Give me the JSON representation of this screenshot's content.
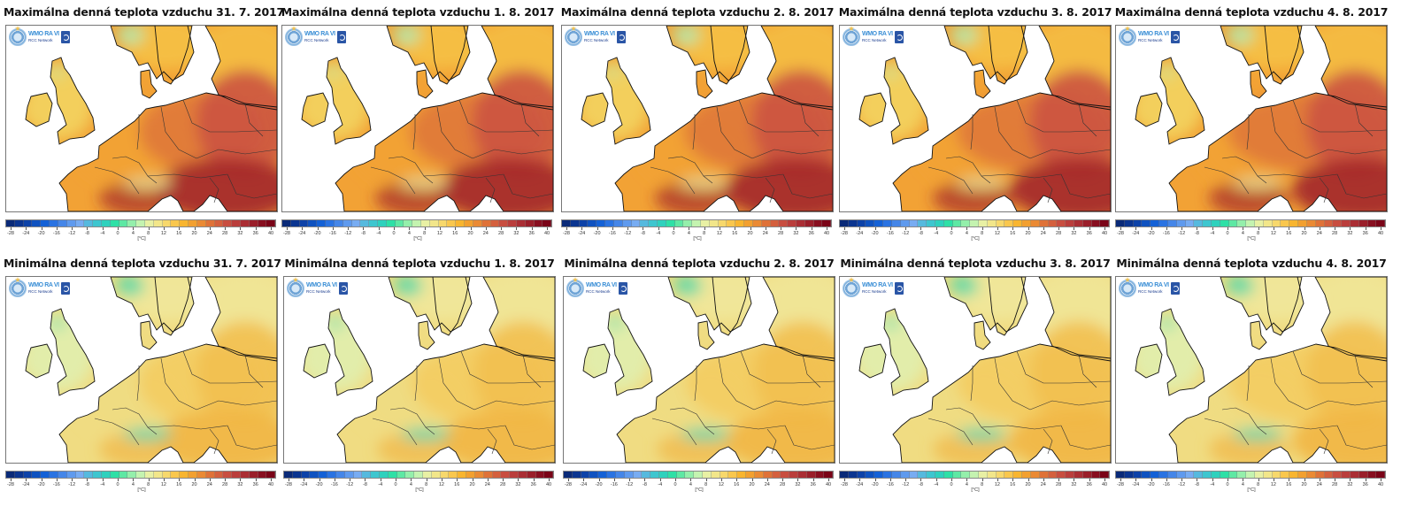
{
  "figure": {
    "source_logo": {
      "org": "WMO",
      "region": "RA VI",
      "network": "RCC Network"
    },
    "colorbar": {
      "unit": "[°C]",
      "ticks": [
        "-28",
        "-24",
        "-20",
        "-16",
        "-12",
        "-8",
        "-4",
        "0",
        "4",
        "8",
        "12",
        "16",
        "20",
        "24",
        "28",
        "32",
        "36",
        "40"
      ],
      "colors": [
        "#0a2a78",
        "#0b3590",
        "#0d42a8",
        "#0f52c0",
        "#1461d6",
        "#2a73e2",
        "#4586e8",
        "#5f9aee",
        "#78acf2",
        "#56b9de",
        "#3ec6cf",
        "#2fd1bd",
        "#2ee0a6",
        "#5ee8a4",
        "#94efab",
        "#c4f3b0",
        "#e8f0a4",
        "#f2e68a",
        "#f7d86c",
        "#f9c74e",
        "#f8b530",
        "#f2a030",
        "#ea8a34",
        "#df7238",
        "#d4603e",
        "#c84e40",
        "#ba3e3c",
        "#aa2e34",
        "#9a1f2a",
        "#880f20",
        "#7a0418"
      ]
    },
    "rows": [
      {
        "variable": "max",
        "panels": [
          {
            "title": "Maximálna denná teplota vzduchu 31. 7. 2017"
          },
          {
            "title": "Maximálna denná teplota vzduchu 1. 8. 2017"
          },
          {
            "title": "Maximálna denná teplota vzduchu 2. 8. 2017"
          },
          {
            "title": "Maximálna denná teplota vzduchu 3. 8. 2017"
          },
          {
            "title": "Maximálna denná teplota vzduchu 4. 8. 2017"
          }
        ]
      },
      {
        "variable": "min",
        "panels": [
          {
            "title": "Minimálna denná teplota vzduchu 31. 7. 2017"
          },
          {
            "title": "Minimálna denná teplota vzduchu 1. 8. 2017"
          },
          {
            "title": "Minimálna denná teplota vzduchu 2. 8. 2017"
          },
          {
            "title": "Minimálna denná teplota vzduchu 3. 8. 2017"
          },
          {
            "title": "Minimálna denná teplota vzduchu 4. 8. 2017"
          }
        ]
      }
    ],
    "palettes": {
      "max": {
        "north": "#f5c044",
        "uk": "#f3cf5c",
        "west": "#f2a235",
        "central": "#e07a3a",
        "east": "#cc5440",
        "southeast": "#a52a2a",
        "alps": "#e8d58a",
        "scandi_high": "#b6e6a8"
      },
      "min": {
        "north": "#f0e79a",
        "uk": "#e2edaa",
        "west": "#f0dc82",
        "central": "#f3cd62",
        "east": "#f2c050",
        "southeast": "#f1b746",
        "alps": "#5fd5ad",
        "scandi_high": "#57d8a8"
      }
    }
  }
}
